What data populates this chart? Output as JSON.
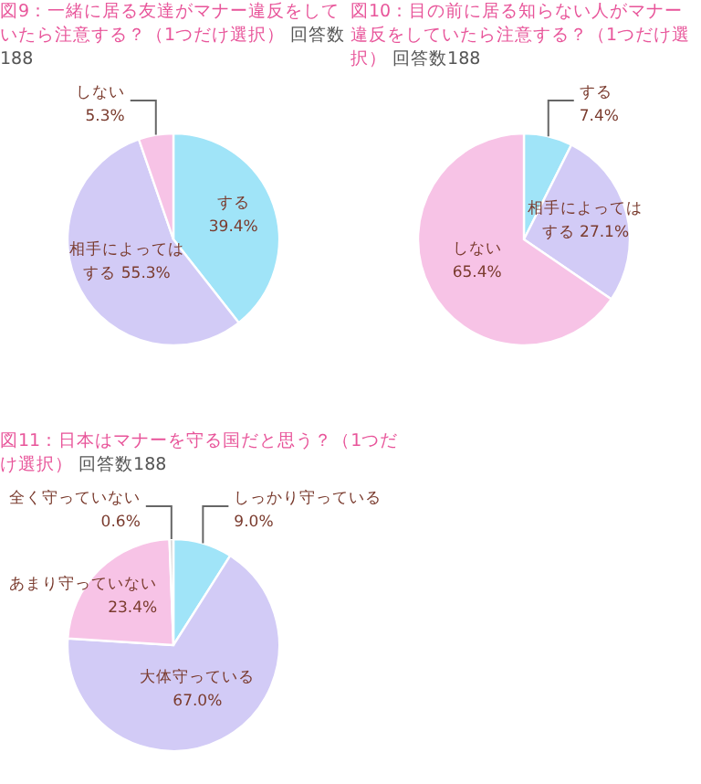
{
  "chart_data": [
    {
      "type": "pie",
      "title": "図9：一緒に居る友達がマナー違反をしていたら注意する？（1つだけ選択）",
      "subtitle": "回答数188",
      "categories": [
        "する",
        "相手によってはする",
        "しない"
      ],
      "values": [
        39.4,
        55.3,
        5.3
      ],
      "value_labels": [
        "39.4%",
        "55.3%",
        "5.3%"
      ],
      "colors": [
        "#a0e4f8",
        "#d2cbf6",
        "#f7c3e6"
      ]
    },
    {
      "type": "pie",
      "title": "図10：目の前に居る知らない人がマナー違反をしていたら注意する？（1つだけ選択）",
      "subtitle": "回答数188",
      "categories": [
        "する",
        "相手によってはする",
        "しない"
      ],
      "values": [
        7.4,
        27.1,
        65.4
      ],
      "value_labels": [
        "7.4%",
        "27.1%",
        "65.4%"
      ],
      "colors": [
        "#a0e4f8",
        "#d2cbf6",
        "#f7c3e6"
      ]
    },
    {
      "type": "pie",
      "title": "図11：日本はマナーを守る国だと思う？（1つだけ選択）",
      "subtitle": "回答数188",
      "categories": [
        "しっかり守っている",
        "大体守っている",
        "あまり守っていない",
        "全く守っていない"
      ],
      "values": [
        9.0,
        67.0,
        23.4,
        0.6
      ],
      "value_labels": [
        "9.0%",
        "67.0%",
        "23.4%",
        "0.6%"
      ],
      "colors": [
        "#a0e4f8",
        "#d2cbf6",
        "#f7c3e6",
        "#d9d9d9"
      ]
    }
  ]
}
